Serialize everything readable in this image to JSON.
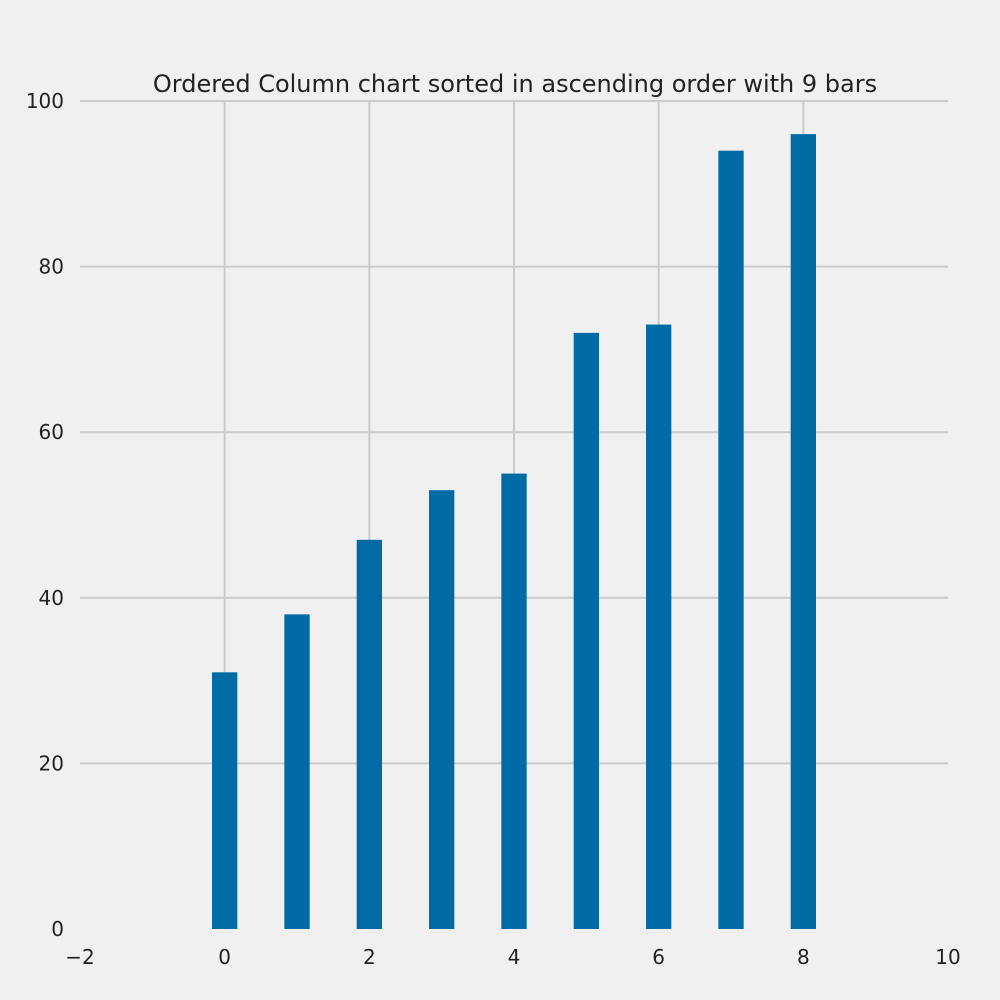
{
  "chart_data": {
    "type": "bar",
    "title": "Ordered Column chart sorted in ascending order with 9 bars",
    "xlabel": "",
    "ylabel": "",
    "x": [
      0,
      1,
      2,
      3,
      4,
      5,
      6,
      7,
      8
    ],
    "values": [
      31,
      38,
      47,
      53,
      55,
      72,
      73,
      94,
      96
    ],
    "bar_width": 0.35,
    "xlim": [
      -2,
      10
    ],
    "ylim": [
      0,
      100
    ],
    "x_ticks": [
      -2,
      0,
      2,
      4,
      6,
      8,
      10
    ],
    "x_tick_labels": [
      "−2",
      "0",
      "2",
      "4",
      "6",
      "8",
      "10"
    ],
    "y_ticks": [
      0,
      20,
      40,
      60,
      80,
      100
    ],
    "y_tick_labels": [
      "0",
      "20",
      "40",
      "60",
      "80",
      "100"
    ],
    "grid": true,
    "legend": "none",
    "colors": {
      "bar": "#006ba4",
      "grid": "#cbcbcb",
      "background": "#f0f0f0",
      "text": "#222222"
    }
  }
}
